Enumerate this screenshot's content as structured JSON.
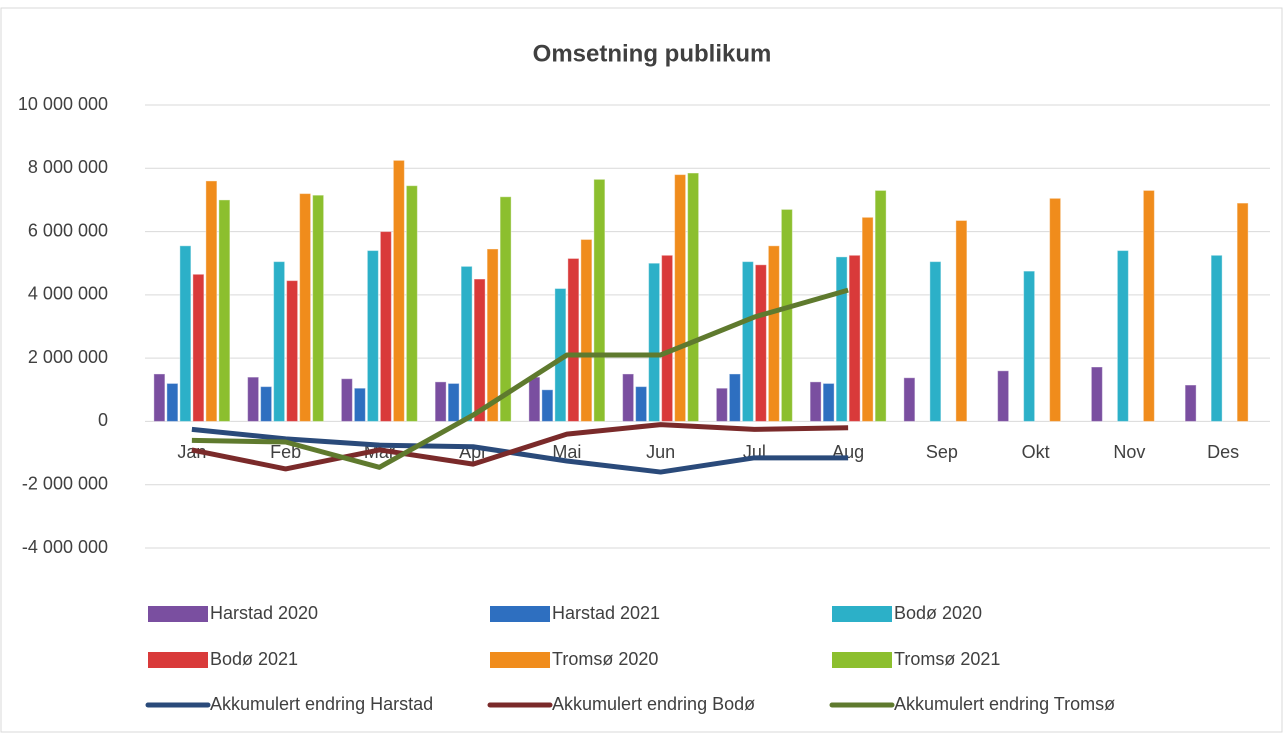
{
  "chart_data": {
    "type": "bar",
    "title": "Omsetning publikum",
    "categories": [
      "Jan",
      "Feb",
      "Mar",
      "Apr",
      "Mai",
      "Jun",
      "Jul",
      "Aug",
      "Sep",
      "Okt",
      "Nov",
      "Des"
    ],
    "series": [
      {
        "name": "Harstad 2020",
        "color": "#7a4fa0",
        "values": [
          1500000,
          1400000,
          1350000,
          1250000,
          1400000,
          1500000,
          1050000,
          1250000,
          1380000,
          1600000,
          1720000,
          1150000
        ]
      },
      {
        "name": "Harstad 2021",
        "color": "#2e6fc0",
        "values": [
          1200000,
          1100000,
          1050000,
          1200000,
          1000000,
          1100000,
          1500000,
          1200000,
          null,
          null,
          null,
          null
        ]
      },
      {
        "name": "Bodø 2020",
        "color": "#2cb0c8",
        "values": [
          5550000,
          5050000,
          5400000,
          4900000,
          4200000,
          5000000,
          5050000,
          5200000,
          5050000,
          4750000,
          5400000,
          5250000
        ]
      },
      {
        "name": "Bodø 2021",
        "color": "#d93a3a",
        "values": [
          4650000,
          4450000,
          6000000,
          4500000,
          5150000,
          5250000,
          4950000,
          5250000,
          null,
          null,
          null,
          null
        ]
      },
      {
        "name": "Tromsø 2020",
        "color": "#f08c1c",
        "values": [
          7600000,
          7200000,
          8250000,
          5450000,
          5750000,
          7800000,
          5550000,
          6450000,
          6350000,
          7050000,
          7300000,
          6900000
        ]
      },
      {
        "name": "Tromsø 2021",
        "color": "#8cbf2e",
        "values": [
          7000000,
          7150000,
          7450000,
          7100000,
          7650000,
          7850000,
          6700000,
          7300000,
          null,
          null,
          null,
          null
        ]
      },
      {
        "name": "Akkumulert endring Harstad",
        "type": "line",
        "color": "#2a4a7a",
        "values": [
          -250000,
          -550000,
          -750000,
          -800000,
          -1250000,
          -1600000,
          -1150000,
          -1150000,
          null,
          null,
          null,
          null
        ]
      },
      {
        "name": "Akkumulert endring Bodø",
        "type": "line",
        "color": "#7a2a2a",
        "values": [
          -900000,
          -1500000,
          -900000,
          -1350000,
          -400000,
          -100000,
          -250000,
          -200000,
          null,
          null,
          null,
          null
        ]
      },
      {
        "name": "Akkumulert endring Tromsø",
        "type": "line",
        "color": "#5f7a2e",
        "values": [
          -600000,
          -650000,
          -1450000,
          200000,
          2100000,
          2100000,
          3300000,
          4150000,
          null,
          null,
          null,
          null
        ]
      }
    ],
    "ylim": [
      -4000000,
      10000000
    ],
    "yticks": [
      {
        "value": -4000000,
        "label": "-4 000 000"
      },
      {
        "value": -2000000,
        "label": "-2 000 000"
      },
      0,
      {
        "value": 2000000,
        "label": "2 000 000"
      },
      {
        "value": 4000000,
        "label": "4 000 000"
      },
      {
        "value": 6000000,
        "label": "6 000 000"
      },
      {
        "value": 8000000,
        "label": "8 000 000"
      },
      {
        "value": 10000000,
        "label": "10 000 000"
      }
    ],
    "grid": true
  }
}
